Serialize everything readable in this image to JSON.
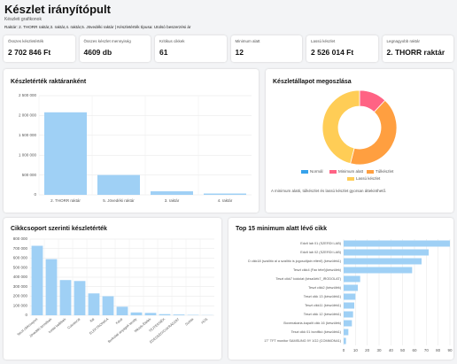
{
  "header": {
    "title": "Készlet irányítópult",
    "subtitle": "Készleti grafikonok",
    "filters": "Raktár: 2. THORR raktár,3. raktár,4. raktár,5. Jövedéki raktár | Készletérték típusa: Utolsó beszerzési ár"
  },
  "kpis": [
    {
      "label": "Összes készletérték",
      "value": "2 702 846 Ft"
    },
    {
      "label": "Összes készlet mennyiség",
      "value": "4609 db"
    },
    {
      "label": "Kritikus cikkek",
      "value": "61"
    },
    {
      "label": "Minimum alatt",
      "value": "12"
    },
    {
      "label": "Lassú készlet",
      "value": "2 526 014 Ft"
    },
    {
      "label": "Legnagyobb raktár",
      "value": "2. THORR raktár"
    }
  ],
  "chart_data": [
    {
      "type": "bar",
      "title": "Készletérték raktáranként",
      "color": "#9fd0f5",
      "categories": [
        "2. THORR raktár",
        "5. Jövedéki raktár",
        "3. raktár",
        "4. raktár"
      ],
      "values": [
        2080000,
        500000,
        90000,
        33000
      ],
      "ylim": [
        0,
        2500000
      ],
      "yticks": [
        0,
        {
          "value": 500000,
          "label": "500 000"
        },
        {
          "value": 1000000,
          "label": "1 000 000"
        },
        {
          "value": 1500000,
          "label": "1 500 000"
        },
        {
          "value": 2000000,
          "label": "2 000 000"
        },
        {
          "value": 2500000,
          "label": "2 500 000"
        }
      ],
      "grid": true
    },
    {
      "type": "doughnut",
      "title": "Készletállapot megoszlása",
      "categories": [
        "Normál",
        "Minimum alatt",
        "Túlkészlet",
        "Lassú készlet"
      ],
      "values": [
        0,
        12,
        42,
        46
      ],
      "colors": [
        "#36a2eb",
        "#ff6384",
        "#ff9f40",
        "#ffcd56"
      ],
      "note": "A minimum alatti, túlkészlet és lassú készlet gyorsan áttekinthető."
    },
    {
      "type": "bar",
      "title": "Cikkcsoport szerinti készletérték",
      "color": "#9fd0f5",
      "categories": [
        "Teszt cikkcsoport",
        "Jövedéki termékek",
        "Irodai kellékek",
        "Cukrászat",
        "Ital",
        "ELEKTRONIKA",
        "Kávé",
        "Burkolati anyagok tavaly",
        "Mézek-Ételek",
        "TEJTERMÉK",
        "ÉDESSÉG/CUKRÁSZAT",
        "Szóda",
        "HÚS"
      ],
      "values": [
        730000,
        590000,
        370000,
        360000,
        230000,
        200000,
        90000,
        30000,
        25000,
        12000,
        8000,
        4000,
        2000
      ],
      "ylim": [
        0,
        800000
      ],
      "yticks": [
        0,
        {
          "value": 100000,
          "label": "100 000"
        },
        {
          "value": 200000,
          "label": "200 000"
        },
        {
          "value": 300000,
          "label": "300 000"
        },
        {
          "value": 400000,
          "label": "400 000"
        },
        {
          "value": 500000,
          "label": "500 000"
        },
        {
          "value": 600000,
          "label": "600 000"
        },
        {
          "value": 700000,
          "label": "700 000"
        },
        {
          "value": 800000,
          "label": "800 000"
        }
      ],
      "grid": true
    },
    {
      "type": "barh",
      "title": "Top 15 minimum alatt lévő cikk",
      "color": "#9fd0f5",
      "categories": [
        "Edző lab 01 (SZERDI LAB)",
        "Edző lab 02 (SZERDI LAB)",
        "D cikk18 (szállító ál a szállító is jogosultjain eltérő) (készülék1)",
        "Teszt cikk4 (Fax tétel)(készülék)",
        "Teszt cikk7 kódolat (készülék7_IRODOLAT)",
        "Teszt cikk2 (készülék)",
        "Teszt cikk 13 (készülék1)",
        "Teszt cikk11 (készülék1)",
        "Teszt cikk 12 (készülék1)",
        "Boxenakaria-kapalit cikk 16 (készülék)",
        "Teszt cikk 01 bonifikó (készülék1)",
        "17\" TFT monitor SAMSUNG 9Y 1G2 (COMMON41)"
      ],
      "values": [
        90,
        72,
        66,
        58,
        14,
        12,
        10,
        9,
        8,
        7,
        4,
        2
      ],
      "xlim": [
        0,
        90
      ],
      "xticks": [
        0,
        10,
        20,
        30,
        40,
        50,
        60,
        70,
        80,
        90
      ],
      "grid": true
    }
  ]
}
